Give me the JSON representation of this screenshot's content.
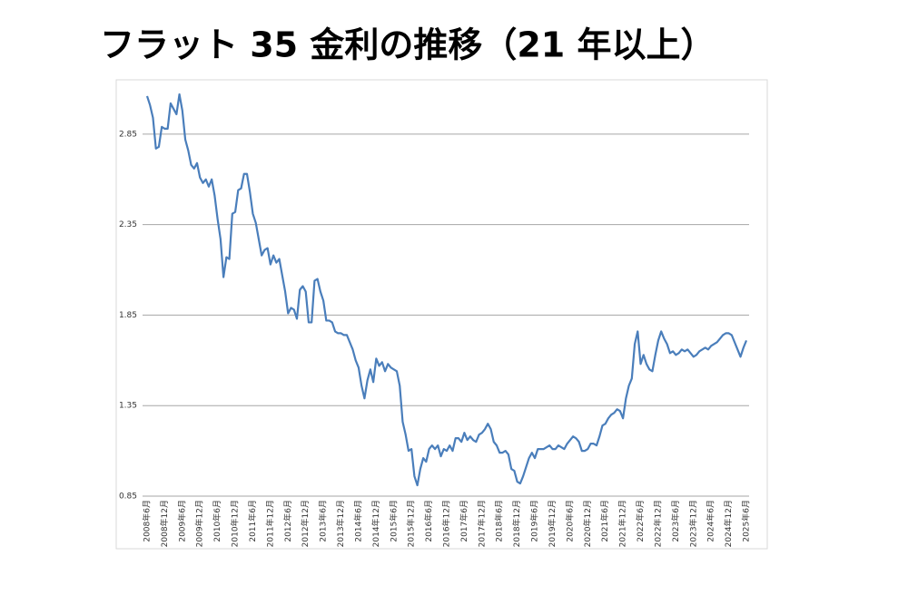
{
  "chart_data": {
    "type": "line",
    "title": "フラット 35 金利の推移（21 年以上）",
    "categories": [
      "2008年6月",
      null,
      null,
      null,
      null,
      null,
      "2008年12月",
      null,
      null,
      null,
      null,
      null,
      "2009年6月",
      null,
      null,
      null,
      null,
      null,
      "2009年12月",
      null,
      null,
      null,
      null,
      null,
      "2010年6月",
      null,
      null,
      null,
      null,
      null,
      "2010年12月",
      null,
      null,
      null,
      null,
      null,
      "2011年6月",
      null,
      null,
      null,
      null,
      null,
      "2011年12月",
      null,
      null,
      null,
      null,
      null,
      "2012年6月",
      null,
      null,
      null,
      null,
      null,
      "2012年12月",
      null,
      null,
      null,
      null,
      null,
      "2013年6月",
      null,
      null,
      null,
      null,
      null,
      "2013年12月",
      null,
      null,
      null,
      null,
      null,
      "2014年6月",
      null,
      null,
      null,
      null,
      null,
      "2014年12月",
      null,
      null,
      null,
      null,
      null,
      "2015年6月",
      null,
      null,
      null,
      null,
      null,
      "2015年12月",
      null,
      null,
      null,
      null,
      null,
      "2016年6月",
      null,
      null,
      null,
      null,
      null,
      "2016年12月",
      null,
      null,
      null,
      null,
      null,
      "2017年6月",
      null,
      null,
      null,
      null,
      null,
      "2017年12月",
      null,
      null,
      null,
      null,
      null,
      "2018年6月",
      null,
      null,
      null,
      null,
      null,
      "2018年12月",
      null,
      null,
      null,
      null,
      null,
      "2019年6月",
      null,
      null,
      null,
      null,
      null,
      "2019年12月",
      null,
      null,
      null,
      null,
      null,
      "2020年6月",
      null,
      null,
      null,
      null,
      null,
      "2020年12月",
      null,
      null,
      null,
      null,
      null,
      "2021年6月",
      null,
      null,
      null,
      null,
      null,
      "2021年12月",
      null,
      null,
      null,
      null,
      null,
      "2022年6月",
      null,
      null,
      null,
      null,
      null,
      "2022年12月",
      null,
      null,
      null,
      null,
      null,
      "2023年6月",
      null,
      null,
      null,
      null,
      null,
      "2023年12月",
      null,
      null,
      null,
      null,
      null,
      "2024年6月",
      null,
      null,
      null,
      null,
      null,
      "2024年12月",
      null,
      null,
      null,
      null,
      null,
      "2025年6月"
    ],
    "values": [
      3.06,
      3.01,
      2.94,
      2.77,
      2.78,
      2.89,
      2.88,
      2.88,
      3.02,
      2.99,
      2.96,
      3.07,
      2.98,
      2.82,
      2.76,
      2.68,
      2.66,
      2.69,
      2.61,
      2.58,
      2.6,
      2.56,
      2.6,
      2.51,
      2.38,
      2.27,
      2.06,
      2.17,
      2.16,
      2.41,
      2.42,
      2.54,
      2.55,
      2.63,
      2.63,
      2.53,
      2.41,
      2.36,
      2.27,
      2.18,
      2.21,
      2.22,
      2.13,
      2.18,
      2.14,
      2.16,
      2.07,
      1.98,
      1.86,
      1.89,
      1.88,
      1.83,
      1.99,
      2.01,
      1.98,
      1.81,
      1.81,
      2.04,
      2.05,
      1.98,
      1.93,
      1.82,
      1.82,
      1.81,
      1.76,
      1.75,
      1.75,
      1.74,
      1.74,
      1.7,
      1.66,
      1.6,
      1.56,
      1.46,
      1.39,
      1.49,
      1.55,
      1.48,
      1.61,
      1.57,
      1.59,
      1.54,
      1.58,
      1.56,
      1.55,
      1.54,
      1.46,
      1.26,
      1.19,
      1.1,
      1.11,
      0.96,
      0.91,
      1.0,
      1.06,
      1.04,
      1.11,
      1.13,
      1.11,
      1.13,
      1.07,
      1.11,
      1.1,
      1.13,
      1.1,
      1.17,
      1.17,
      1.15,
      1.2,
      1.16,
      1.18,
      1.16,
      1.15,
      1.19,
      1.2,
      1.22,
      1.25,
      1.22,
      1.15,
      1.13,
      1.09,
      1.09,
      1.1,
      1.08,
      1.0,
      0.99,
      0.93,
      0.92,
      0.96,
      1.01,
      1.06,
      1.09,
      1.06,
      1.11,
      1.11,
      1.11,
      1.12,
      1.13,
      1.11,
      1.11,
      1.13,
      1.12,
      1.11,
      1.14,
      1.16,
      1.18,
      1.17,
      1.15,
      1.1,
      1.1,
      1.11,
      1.14,
      1.14,
      1.13,
      1.18,
      1.24,
      1.25,
      1.28,
      1.3,
      1.31,
      1.33,
      1.32,
      1.28,
      1.39,
      1.46,
      1.5,
      1.69,
      1.76,
      1.58,
      1.63,
      1.58,
      1.55,
      1.54,
      1.63,
      1.71,
      1.76,
      1.72,
      1.69,
      1.64,
      1.65,
      1.63,
      1.64,
      1.66,
      1.65,
      1.66,
      1.64,
      1.62,
      1.63,
      1.65,
      1.66,
      1.67,
      1.66,
      1.68,
      1.69,
      1.7,
      1.72,
      1.74,
      1.75,
      1.75,
      1.74,
      1.7,
      1.66,
      1.62,
      1.67,
      1.71
    ],
    "color": "#4a7ebb",
    "ylim": [
      0.85,
      3.15
    ],
    "yticks": [
      0.85,
      1.35,
      1.85,
      2.35,
      2.85
    ],
    "grid": true
  }
}
